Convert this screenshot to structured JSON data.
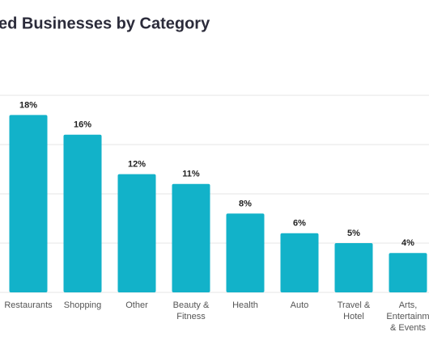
{
  "chart_data": {
    "type": "bar",
    "title": "ed Businesses by Category",
    "categories": [
      "Restaurants",
      "Shopping",
      "Other",
      "Beauty & Fitness",
      "Health",
      "Auto",
      "Travel & Hotel",
      "Arts, Entertainm & Events"
    ],
    "values": [
      18,
      16,
      12,
      11,
      8,
      6,
      5,
      4
    ],
    "value_labels": [
      "18%",
      "16%",
      "12%",
      "11%",
      "8%",
      "6%",
      "5%",
      "4%"
    ],
    "color": "#12b2c9",
    "ylim": [
      0,
      20
    ],
    "yticks": [
      0,
      5,
      10,
      15,
      20
    ],
    "grid": true
  }
}
